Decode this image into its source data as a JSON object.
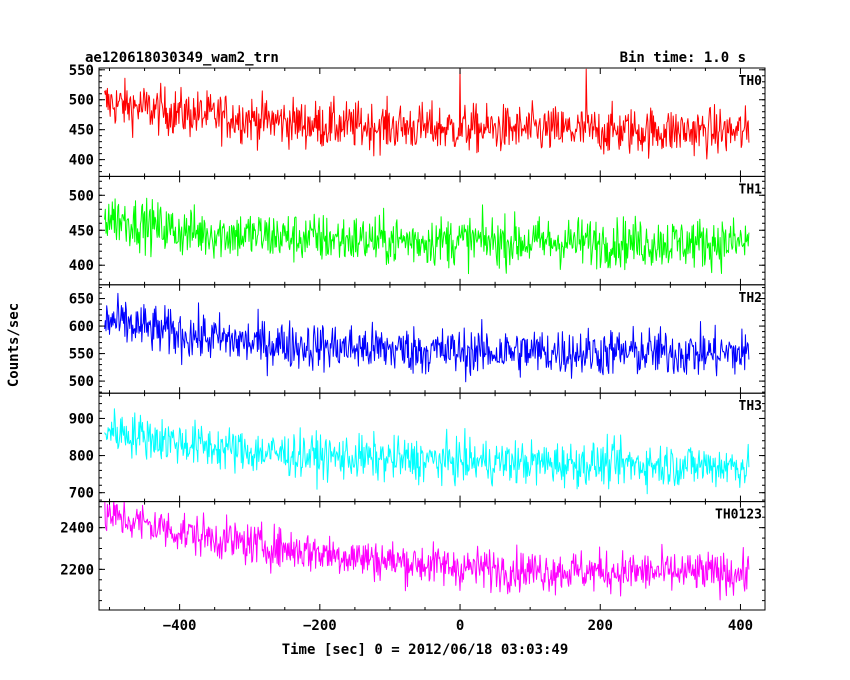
{
  "header": {
    "title": "ae120618030349_wam2_trn",
    "bin_time": "Bin time: 1.0 s"
  },
  "chart_data": {
    "type": "line",
    "title": "ae120618030349_wam2_trn",
    "subtitle": "Bin time: 1.0 s",
    "xlabel": "Time [sec] 0 = 2012/06/18 03:03:49",
    "ylabel": "Counts/sec",
    "xlim": [
      -515,
      435
    ],
    "x_range": [
      -507,
      412
    ],
    "x_ticks": [
      -400,
      -200,
      0,
      200,
      400
    ],
    "x_tick_labels": [
      "−400",
      "−200",
      "0",
      "200",
      "400"
    ],
    "grid": false,
    "panels": [
      {
        "name": "TH0",
        "color": "#ff0000",
        "ylim": [
          372,
          553
        ],
        "yticks": [
          400,
          450,
          500,
          550
        ],
        "trend": [
          [
            -505,
            495
          ],
          [
            -400,
            478
          ],
          [
            -300,
            468
          ],
          [
            -200,
            458
          ],
          [
            -100,
            455
          ],
          [
            0,
            452
          ],
          [
            100,
            450
          ],
          [
            200,
            448
          ],
          [
            300,
            448
          ],
          [
            412,
            446
          ]
        ],
        "noise": 20,
        "spikes": [
          [
            0,
            553
          ],
          [
            180,
            551
          ]
        ]
      },
      {
        "name": "TH1",
        "color": "#00ff00",
        "ylim": [
          372,
          527
        ],
        "yticks": [
          400,
          450,
          500
        ],
        "trend": [
          [
            -505,
            470
          ],
          [
            -400,
            448
          ],
          [
            -300,
            443
          ],
          [
            -200,
            438
          ],
          [
            -100,
            435
          ],
          [
            0,
            435
          ],
          [
            100,
            433
          ],
          [
            200,
            433
          ],
          [
            300,
            432
          ],
          [
            412,
            432
          ]
        ],
        "noise": 18,
        "spikes": []
      },
      {
        "name": "TH2",
        "color": "#0000ff",
        "ylim": [
          478,
          675
        ],
        "yticks": [
          500,
          550,
          600,
          650
        ],
        "trend": [
          [
            -505,
            610
          ],
          [
            -400,
            585
          ],
          [
            -300,
            570
          ],
          [
            -200,
            563
          ],
          [
            -100,
            558
          ],
          [
            0,
            553
          ],
          [
            100,
            553
          ],
          [
            200,
            552
          ],
          [
            300,
            552
          ],
          [
            412,
            550
          ]
        ],
        "noise": 22,
        "spikes": []
      },
      {
        "name": "TH3",
        "color": "#00ffff",
        "ylim": [
          676,
          968
        ],
        "yticks": [
          700,
          800,
          900
        ],
        "trend": [
          [
            -505,
            870
          ],
          [
            -400,
            835
          ],
          [
            -300,
            810
          ],
          [
            -200,
            798
          ],
          [
            -100,
            790
          ],
          [
            0,
            785
          ],
          [
            100,
            780
          ],
          [
            200,
            778
          ],
          [
            300,
            775
          ],
          [
            412,
            772
          ]
        ],
        "noise": 30,
        "spikes": []
      },
      {
        "name": "TH0123",
        "color": "#ff00ff",
        "ylim": [
          2005,
          2525
        ],
        "yticks": [
          2200,
          2400
        ],
        "trend": [
          [
            -505,
            2460
          ],
          [
            -400,
            2380
          ],
          [
            -300,
            2320
          ],
          [
            -200,
            2280
          ],
          [
            -100,
            2240
          ],
          [
            0,
            2210
          ],
          [
            100,
            2195
          ],
          [
            200,
            2190
          ],
          [
            300,
            2185
          ],
          [
            412,
            2180
          ]
        ],
        "noise": 50,
        "spikes": []
      }
    ]
  }
}
